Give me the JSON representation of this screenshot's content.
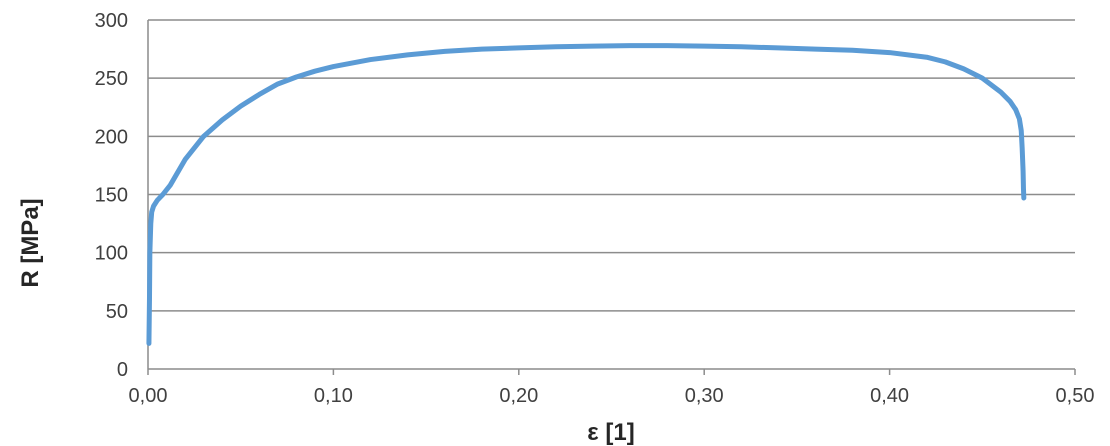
{
  "chart_data": {
    "type": "line",
    "title": "",
    "xlabel": "ε [1]",
    "ylabel": "R [MPa]",
    "xlim": [
      0,
      0.5
    ],
    "ylim": [
      0,
      300
    ],
    "x_ticks": [
      0,
      0.1,
      0.2,
      0.3,
      0.4,
      0.5
    ],
    "x_tick_labels": [
      "0,00",
      "0,10",
      "0,20",
      "0,30",
      "0,40",
      "0,50"
    ],
    "y_ticks": [
      0,
      50,
      100,
      150,
      200,
      250,
      300
    ],
    "y_tick_labels": [
      "0",
      "50",
      "100",
      "150",
      "200",
      "250",
      "300"
    ],
    "grid": "horizontal",
    "legend": "none",
    "line_color": "#5b9bd5",
    "series": [
      {
        "x": [
          0.0005,
          0.0008,
          0.001,
          0.0015,
          0.002,
          0.003,
          0.005,
          0.008,
          0.012,
          0.02,
          0.03,
          0.04,
          0.05,
          0.06,
          0.07,
          0.08,
          0.09,
          0.1,
          0.12,
          0.14,
          0.16,
          0.18,
          0.2,
          0.22,
          0.24,
          0.26,
          0.28,
          0.3,
          0.32,
          0.34,
          0.36,
          0.38,
          0.4,
          0.42,
          0.43,
          0.44,
          0.45,
          0.46,
          0.465,
          0.468,
          0.47,
          0.471,
          0.4715,
          0.472,
          0.4722,
          0.4724
        ],
        "y": [
          22,
          60,
          100,
          125,
          135,
          140,
          145,
          150,
          158,
          180,
          200,
          214,
          226,
          236,
          245,
          251,
          256,
          260,
          266,
          270,
          273,
          275,
          276,
          277,
          277.5,
          278,
          278,
          277.5,
          277,
          276,
          275,
          274,
          272,
          268,
          264,
          258,
          250,
          238,
          230,
          223,
          215,
          205,
          190,
          170,
          155,
          147
        ]
      }
    ]
  }
}
